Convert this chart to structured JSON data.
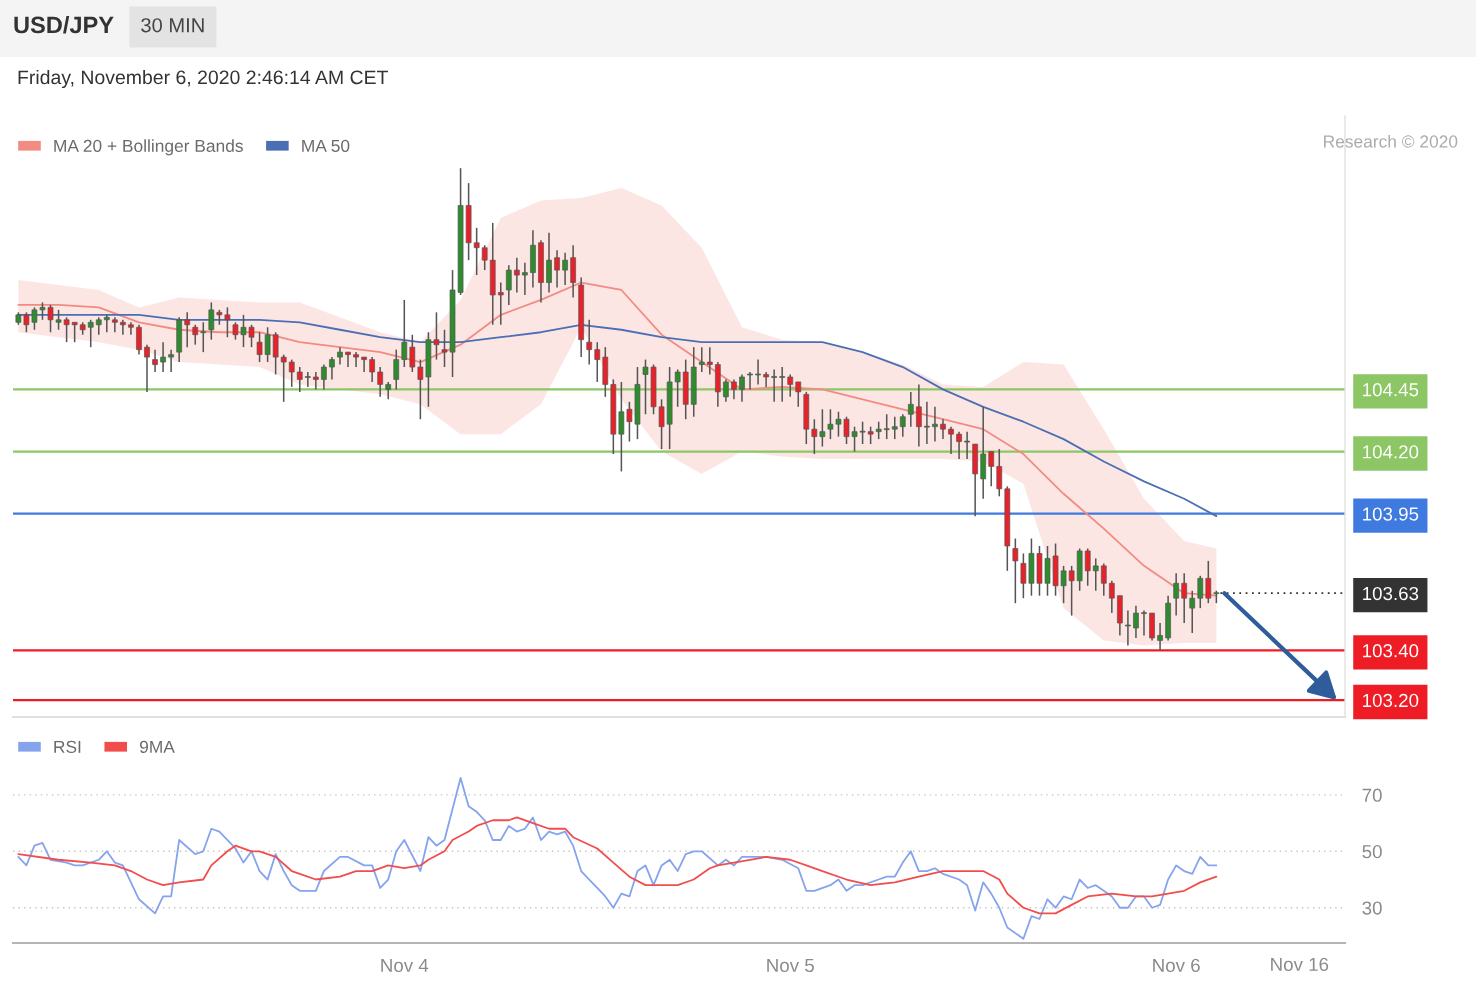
{
  "chart_data": [
    {
      "type": "candlestick",
      "title": "USD/JPY",
      "subtitle": "Friday, November 6, 2020 2:46:14 AM CET",
      "annotations": [
        "30 MIN",
        "Research © 2020"
      ],
      "x": [
        "2020-11-03T00:00",
        "2020-11-03T00:30",
        "2020-11-03T01:00",
        "2020-11-03T01:30",
        "2020-11-03T02:00",
        "2020-11-03T02:30",
        "2020-11-03T03:00",
        "2020-11-03T03:30",
        "2020-11-03T04:00",
        "2020-11-03T04:30",
        "2020-11-03T05:00",
        "2020-11-03T05:30",
        "2020-11-03T06:00",
        "2020-11-03T06:30",
        "2020-11-03T07:00",
        "2020-11-03T07:30",
        "2020-11-03T08:00",
        "2020-11-03T08:30",
        "2020-11-03T09:00",
        "2020-11-03T09:30",
        "2020-11-03T10:00",
        "2020-11-03T10:30",
        "2020-11-03T11:00",
        "2020-11-03T11:30",
        "2020-11-03T12:00",
        "2020-11-03T12:30",
        "2020-11-03T13:00",
        "2020-11-03T13:30",
        "2020-11-03T14:00",
        "2020-11-03T14:30",
        "2020-11-03T15:00",
        "2020-11-03T15:30",
        "2020-11-03T16:00",
        "2020-11-03T16:30",
        "2020-11-03T17:00",
        "2020-11-03T17:30",
        "2020-11-03T18:00",
        "2020-11-03T18:30",
        "2020-11-03T19:00",
        "2020-11-03T19:30",
        "2020-11-03T20:00",
        "2020-11-03T20:30",
        "2020-11-03T21:00",
        "2020-11-03T21:30",
        "2020-11-03T22:00",
        "2020-11-03T22:30",
        "2020-11-03T23:00",
        "2020-11-03T23:30",
        "2020-11-04T00:00",
        "2020-11-04T00:30",
        "2020-11-04T01:00",
        "2020-11-04T01:30",
        "2020-11-04T02:00",
        "2020-11-04T02:30",
        "2020-11-04T03:00",
        "2020-11-04T03:30",
        "2020-11-04T04:00",
        "2020-11-04T04:30",
        "2020-11-04T05:00",
        "2020-11-04T05:30",
        "2020-11-04T06:00",
        "2020-11-04T06:30",
        "2020-11-04T07:00",
        "2020-11-04T07:30",
        "2020-11-04T08:00",
        "2020-11-04T08:30",
        "2020-11-04T09:00",
        "2020-11-04T09:30",
        "2020-11-04T10:00",
        "2020-11-04T10:30",
        "2020-11-04T11:00",
        "2020-11-04T11:30",
        "2020-11-04T12:00",
        "2020-11-04T12:30",
        "2020-11-04T13:00",
        "2020-11-04T13:30",
        "2020-11-04T14:00",
        "2020-11-04T14:30",
        "2020-11-04T15:00",
        "2020-11-04T15:30",
        "2020-11-04T16:00",
        "2020-11-04T16:30",
        "2020-11-04T17:00",
        "2020-11-04T17:30",
        "2020-11-04T18:00",
        "2020-11-04T18:30",
        "2020-11-04T19:00",
        "2020-11-04T19:30",
        "2020-11-04T20:00",
        "2020-11-04T20:30",
        "2020-11-04T21:00",
        "2020-11-04T21:30",
        "2020-11-04T22:00",
        "2020-11-04T22:30",
        "2020-11-04T23:00",
        "2020-11-04T23:30",
        "2020-11-05T00:00",
        "2020-11-05T00:30",
        "2020-11-05T01:00",
        "2020-11-05T01:30",
        "2020-11-05T02:00",
        "2020-11-05T02:30",
        "2020-11-05T03:00",
        "2020-11-05T03:30",
        "2020-11-05T04:00",
        "2020-11-05T04:30",
        "2020-11-05T05:00",
        "2020-11-05T05:30",
        "2020-11-05T06:00",
        "2020-11-05T06:30",
        "2020-11-05T07:00",
        "2020-11-05T07:30",
        "2020-11-05T08:00",
        "2020-11-05T08:30",
        "2020-11-05T09:00",
        "2020-11-05T09:30",
        "2020-11-05T10:00",
        "2020-11-05T10:30",
        "2020-11-05T11:00",
        "2020-11-05T11:30",
        "2020-11-05T12:00",
        "2020-11-05T12:30",
        "2020-11-05T13:00",
        "2020-11-05T13:30",
        "2020-11-05T14:00",
        "2020-11-05T14:30",
        "2020-11-05T15:00",
        "2020-11-05T15:30",
        "2020-11-05T16:00",
        "2020-11-05T16:30",
        "2020-11-05T17:00",
        "2020-11-05T17:30",
        "2020-11-05T18:00",
        "2020-11-05T18:30",
        "2020-11-05T19:00",
        "2020-11-05T19:30",
        "2020-11-05T20:00",
        "2020-11-05T20:30",
        "2020-11-05T21:00",
        "2020-11-05T21:30",
        "2020-11-05T22:00",
        "2020-11-05T22:30",
        "2020-11-05T23:00",
        "2020-11-05T23:30",
        "2020-11-06T00:00",
        "2020-11-06T00:30",
        "2020-11-06T01:00",
        "2020-11-06T01:30",
        "2020-11-06T02:00",
        "2020-11-06T02:30"
      ],
      "ohlc": [
        [
          104.72,
          104.76,
          104.71,
          104.75
        ],
        [
          104.75,
          104.76,
          104.68,
          104.71
        ],
        [
          104.72,
          104.78,
          104.69,
          104.77
        ],
        [
          104.77,
          104.8,
          104.73,
          104.78
        ],
        [
          104.78,
          104.79,
          104.68,
          104.73
        ],
        [
          104.72,
          104.77,
          104.69,
          104.73
        ],
        [
          104.73,
          104.74,
          104.64,
          104.71
        ],
        [
          104.72,
          104.72,
          104.64,
          104.71
        ],
        [
          104.71,
          104.72,
          104.67,
          104.69
        ],
        [
          104.7,
          104.73,
          104.62,
          104.72
        ],
        [
          104.71,
          104.74,
          104.67,
          104.73
        ],
        [
          104.73,
          104.75,
          104.68,
          104.74
        ],
        [
          104.73,
          104.74,
          104.68,
          104.72
        ],
        [
          104.72,
          104.73,
          104.67,
          104.71
        ],
        [
          104.71,
          104.72,
          104.67,
          104.7
        ],
        [
          104.7,
          104.71,
          104.59,
          104.61
        ],
        [
          104.62,
          104.63,
          104.44,
          104.58
        ],
        [
          104.57,
          104.61,
          104.52,
          104.55
        ],
        [
          104.56,
          104.64,
          104.52,
          104.58
        ],
        [
          104.58,
          104.61,
          104.52,
          104.59
        ],
        [
          104.6,
          104.74,
          104.56,
          104.73
        ],
        [
          104.73,
          104.76,
          104.62,
          104.71
        ],
        [
          104.7,
          104.71,
          104.63,
          104.67
        ],
        [
          104.68,
          104.72,
          104.6,
          104.68
        ],
        [
          104.69,
          104.8,
          104.65,
          104.77
        ],
        [
          104.76,
          104.77,
          104.71,
          104.75
        ],
        [
          104.75,
          104.78,
          104.66,
          104.73
        ],
        [
          104.71,
          104.72,
          104.65,
          104.67
        ],
        [
          104.67,
          104.75,
          104.62,
          104.7
        ],
        [
          104.7,
          104.71,
          104.62,
          104.66
        ],
        [
          104.64,
          104.68,
          104.56,
          104.59
        ],
        [
          104.59,
          104.7,
          104.56,
          104.67
        ],
        [
          104.67,
          104.68,
          104.51,
          104.58
        ],
        [
          104.58,
          104.59,
          104.4,
          104.56
        ],
        [
          104.56,
          104.57,
          104.46,
          104.52
        ],
        [
          104.52,
          104.54,
          104.44,
          104.49
        ],
        [
          104.5,
          104.52,
          104.46,
          104.5
        ],
        [
          104.5,
          104.52,
          104.45,
          104.49
        ],
        [
          104.49,
          104.55,
          104.45,
          104.54
        ],
        [
          104.54,
          104.58,
          104.49,
          104.57
        ],
        [
          104.58,
          104.62,
          104.55,
          104.6
        ],
        [
          104.6,
          104.6,
          104.54,
          104.59
        ],
        [
          104.59,
          104.6,
          104.54,
          104.58
        ],
        [
          104.58,
          104.58,
          104.52,
          104.57
        ],
        [
          104.57,
          104.58,
          104.48,
          104.52
        ],
        [
          104.52,
          104.54,
          104.42,
          104.47
        ],
        [
          104.45,
          104.48,
          104.41,
          104.47
        ],
        [
          104.49,
          104.61,
          104.45,
          104.57
        ],
        [
          104.57,
          104.81,
          104.54,
          104.64
        ],
        [
          104.62,
          104.67,
          104.52,
          104.54
        ],
        [
          104.54,
          104.57,
          104.33,
          104.49
        ],
        [
          104.5,
          104.68,
          104.38,
          104.65
        ],
        [
          104.65,
          104.76,
          104.57,
          104.63
        ],
        [
          104.61,
          104.69,
          104.54,
          104.6
        ],
        [
          104.6,
          104.93,
          104.5,
          104.85
        ],
        [
          104.84,
          105.34,
          104.83,
          105.19
        ],
        [
          105.19,
          105.28,
          104.97,
          105.04
        ],
        [
          105.04,
          105.1,
          104.91,
          105.02
        ],
        [
          105.02,
          105.03,
          104.93,
          104.97
        ],
        [
          104.97,
          105.12,
          104.71,
          104.83
        ],
        [
          104.84,
          104.88,
          104.71,
          104.83
        ],
        [
          104.85,
          104.95,
          104.79,
          104.93
        ],
        [
          104.93,
          104.98,
          104.84,
          104.91
        ],
        [
          104.91,
          104.96,
          104.83,
          104.92
        ],
        [
          104.92,
          105.09,
          104.86,
          105.03
        ],
        [
          105.04,
          105.05,
          104.8,
          104.88
        ],
        [
          104.88,
          105.08,
          104.84,
          104.97
        ],
        [
          104.98,
          105.01,
          104.86,
          104.93
        ],
        [
          104.93,
          105.0,
          104.87,
          104.97
        ],
        [
          104.98,
          105.03,
          104.82,
          104.88
        ],
        [
          104.87,
          104.9,
          104.58,
          104.65
        ],
        [
          104.64,
          104.73,
          104.55,
          104.61
        ],
        [
          104.61,
          104.64,
          104.48,
          104.57
        ],
        [
          104.58,
          104.62,
          104.42,
          104.47
        ],
        [
          104.47,
          104.49,
          104.19,
          104.27
        ],
        [
          104.27,
          104.48,
          104.12,
          104.36
        ],
        [
          104.37,
          104.4,
          104.24,
          104.32
        ],
        [
          104.31,
          104.54,
          104.25,
          104.47
        ],
        [
          104.51,
          104.57,
          104.35,
          104.54
        ],
        [
          104.54,
          104.55,
          104.35,
          104.38
        ],
        [
          104.38,
          104.41,
          104.21,
          104.3
        ],
        [
          104.31,
          104.54,
          104.21,
          104.48
        ],
        [
          104.48,
          104.53,
          104.38,
          104.52
        ],
        [
          104.52,
          104.57,
          104.33,
          104.39
        ],
        [
          104.39,
          104.62,
          104.34,
          104.54
        ],
        [
          104.55,
          104.62,
          104.52,
          104.56
        ],
        [
          104.56,
          104.62,
          104.51,
          104.55
        ],
        [
          104.55,
          104.56,
          104.38,
          104.44
        ],
        [
          104.42,
          104.49,
          104.4,
          104.48
        ],
        [
          104.48,
          104.49,
          104.41,
          104.45
        ],
        [
          104.45,
          104.51,
          104.4,
          104.5
        ],
        [
          104.51,
          104.52,
          104.45,
          104.51
        ],
        [
          104.51,
          104.57,
          104.47,
          104.51
        ],
        [
          104.51,
          104.52,
          104.46,
          104.5
        ],
        [
          104.5,
          104.53,
          104.4,
          104.5
        ],
        [
          104.5,
          104.54,
          104.4,
          104.5
        ],
        [
          104.5,
          104.51,
          104.42,
          104.47
        ],
        [
          104.48,
          104.48,
          104.38,
          104.44
        ],
        [
          104.43,
          104.44,
          104.23,
          104.29
        ],
        [
          104.29,
          104.33,
          104.19,
          104.26
        ],
        [
          104.26,
          104.37,
          104.22,
          104.28
        ],
        [
          104.29,
          104.37,
          104.25,
          104.31
        ],
        [
          104.31,
          104.36,
          104.26,
          104.33
        ],
        [
          104.33,
          104.34,
          104.23,
          104.26
        ],
        [
          104.26,
          104.3,
          104.2,
          104.28
        ],
        [
          104.28,
          104.32,
          104.23,
          104.28
        ],
        [
          104.28,
          104.3,
          104.23,
          104.27
        ],
        [
          104.28,
          104.32,
          104.25,
          104.29
        ],
        [
          104.29,
          104.35,
          104.25,
          104.29
        ],
        [
          104.29,
          104.34,
          104.25,
          104.3
        ],
        [
          104.3,
          104.35,
          104.26,
          104.34
        ],
        [
          104.35,
          104.44,
          104.3,
          104.39
        ],
        [
          104.38,
          104.47,
          104.22,
          104.3
        ],
        [
          104.3,
          104.4,
          104.23,
          104.3
        ],
        [
          104.3,
          104.38,
          104.24,
          104.31
        ],
        [
          104.31,
          104.33,
          104.25,
          104.29
        ],
        [
          104.29,
          104.3,
          104.19,
          104.27
        ],
        [
          104.27,
          104.28,
          104.17,
          104.24
        ],
        [
          104.24,
          104.28,
          104.17,
          104.24
        ],
        [
          104.23,
          104.23,
          103.94,
          104.11
        ],
        [
          104.09,
          104.38,
          104.01,
          104.19
        ],
        [
          104.2,
          104.2,
          104.06,
          104.14
        ],
        [
          104.14,
          104.21,
          104.02,
          104.05
        ],
        [
          104.05,
          104.06,
          103.72,
          103.82
        ],
        [
          103.81,
          103.85,
          103.59,
          103.76
        ],
        [
          103.75,
          103.79,
          103.61,
          103.67
        ],
        [
          103.67,
          103.85,
          103.62,
          103.79
        ],
        [
          103.79,
          103.82,
          103.62,
          103.67
        ],
        [
          103.67,
          103.82,
          103.62,
          103.77
        ],
        [
          103.78,
          103.83,
          103.62,
          103.66
        ],
        [
          103.66,
          103.74,
          103.59,
          103.72
        ],
        [
          103.72,
          103.74,
          103.54,
          103.68
        ],
        [
          103.68,
          103.81,
          103.64,
          103.8
        ],
        [
          103.8,
          103.81,
          103.66,
          103.72
        ],
        [
          103.72,
          103.77,
          103.64,
          103.74
        ],
        [
          103.74,
          103.75,
          103.62,
          103.67
        ],
        [
          103.67,
          103.68,
          103.55,
          103.61
        ],
        [
          103.62,
          103.62,
          103.46,
          103.51
        ],
        [
          103.5,
          103.56,
          103.42,
          103.5
        ],
        [
          103.49,
          103.58,
          103.45,
          103.55
        ],
        [
          103.55,
          103.56,
          103.46,
          103.55
        ],
        [
          103.55,
          103.55,
          103.44,
          103.45
        ],
        [
          103.44,
          103.51,
          103.4,
          103.46
        ],
        [
          103.45,
          103.62,
          103.44,
          103.59
        ],
        [
          103.61,
          103.71,
          103.54,
          103.67
        ],
        [
          103.67,
          103.71,
          103.51,
          103.61
        ],
        [
          103.57,
          103.64,
          103.47,
          103.61
        ],
        [
          103.61,
          103.7,
          103.57,
          103.69
        ],
        [
          103.69,
          103.76,
          103.59,
          103.61
        ],
        [
          103.63,
          103.64,
          103.59,
          103.63
        ]
      ],
      "series": [
        {
          "name": "MA 20 + Bollinger Bands",
          "type": "line",
          "color": "#f28b82",
          "x": [
            "2020-11-03T00:00",
            "2020-11-03T02:30",
            "2020-11-03T05:00",
            "2020-11-03T07:30",
            "2020-11-03T10:00",
            "2020-11-03T12:30",
            "2020-11-03T15:00",
            "2020-11-03T17:30",
            "2020-11-03T20:00",
            "2020-11-03T22:30",
            "2020-11-04T01:00",
            "2020-11-04T03:30",
            "2020-11-04T06:00",
            "2020-11-04T08:30",
            "2020-11-04T11:00",
            "2020-11-04T13:30",
            "2020-11-04T16:00",
            "2020-11-04T18:30",
            "2020-11-04T21:00",
            "2020-11-04T23:30",
            "2020-11-05T02:00",
            "2020-11-05T04:30",
            "2020-11-05T07:00",
            "2020-11-05T09:30",
            "2020-11-05T12:00",
            "2020-11-05T14:30",
            "2020-11-05T17:00",
            "2020-11-05T19:30",
            "2020-11-05T22:00",
            "2020-11-06T00:30",
            "2020-11-06T02:30"
          ],
          "values": [
            104.79,
            104.79,
            104.78,
            104.72,
            104.69,
            104.68,
            104.68,
            104.64,
            104.62,
            104.6,
            104.56,
            104.63,
            104.75,
            104.81,
            104.88,
            104.85,
            104.67,
            104.56,
            104.45,
            104.46,
            104.45,
            104.41,
            104.37,
            104.33,
            104.29,
            104.19,
            104.03,
            103.89,
            103.74,
            103.63,
            103.62
          ],
          "upper": [
            104.89,
            104.87,
            104.85,
            104.78,
            104.82,
            104.81,
            104.8,
            104.8,
            104.74,
            104.68,
            104.64,
            104.81,
            105.14,
            105.21,
            105.22,
            105.26,
            105.19,
            105.02,
            104.7,
            104.65,
            104.64,
            104.6,
            104.55,
            104.47,
            104.46,
            104.56,
            104.55,
            104.29,
            104.01,
            103.84,
            103.81
          ],
          "lower": [
            104.68,
            104.66,
            104.64,
            104.61,
            104.56,
            104.55,
            104.54,
            104.47,
            104.45,
            104.43,
            104.39,
            104.27,
            104.27,
            104.39,
            104.7,
            104.41,
            104.2,
            104.11,
            104.2,
            104.18,
            104.17,
            104.17,
            104.17,
            104.17,
            104.16,
            104.07,
            103.57,
            103.44,
            103.42,
            103.43,
            103.43
          ]
        },
        {
          "name": "MA 50",
          "type": "line",
          "color": "#4a6fb5",
          "x": [
            "2020-11-03T00:00",
            "2020-11-03T02:30",
            "2020-11-03T05:00",
            "2020-11-03T07:30",
            "2020-11-03T10:00",
            "2020-11-03T12:30",
            "2020-11-03T15:00",
            "2020-11-03T17:30",
            "2020-11-03T20:00",
            "2020-11-03T22:30",
            "2020-11-04T01:00",
            "2020-11-04T03:30",
            "2020-11-04T06:00",
            "2020-11-04T08:30",
            "2020-11-04T11:00",
            "2020-11-04T13:30",
            "2020-11-04T16:00",
            "2020-11-04T18:30",
            "2020-11-04T21:00",
            "2020-11-04T23:30",
            "2020-11-05T02:00",
            "2020-11-05T04:30",
            "2020-11-05T07:00",
            "2020-11-05T09:30",
            "2020-11-05T12:00",
            "2020-11-05T14:30",
            "2020-11-05T17:00",
            "2020-11-05T19:30",
            "2020-11-05T22:00",
            "2020-11-06T00:30",
            "2020-11-06T02:30"
          ],
          "values": [
            104.75,
            104.75,
            104.75,
            104.75,
            104.73,
            104.73,
            104.73,
            104.72,
            104.69,
            104.66,
            104.64,
            104.64,
            104.66,
            104.68,
            104.71,
            104.69,
            104.66,
            104.64,
            104.64,
            104.64,
            104.64,
            104.6,
            104.54,
            104.45,
            104.38,
            104.32,
            104.25,
            104.16,
            104.08,
            104.01,
            103.94
          ]
        }
      ],
      "legend": "top left",
      "ref_lines": [
        {
          "axis": "y",
          "value": 104.45,
          "color": "#8cc665"
        },
        {
          "axis": "y",
          "value": 104.2,
          "color": "#8cc665"
        },
        {
          "axis": "y",
          "value": 103.95,
          "color": "#3f7ae0"
        },
        {
          "axis": "y",
          "value": 103.63,
          "color": "#333333",
          "line_style": "dotted"
        },
        {
          "axis": "y",
          "value": 103.4,
          "color": "#ee1c25"
        },
        {
          "axis": "y",
          "value": 103.2,
          "color": "#ee1c25"
        }
      ],
      "xlim": [
        "2020-11-02T23:40",
        "2020-11-06T10:30"
      ],
      "ylim": [
        103.14,
        105.55
      ],
      "yticks": [
        {
          "value": 103.2,
          "label": "103.20"
        },
        {
          "value": 103.4,
          "label": "103.40"
        },
        {
          "value": 103.63,
          "label": "103.63"
        },
        {
          "value": 103.95,
          "label": "103.95"
        },
        {
          "value": 104.2,
          "label": "104.20"
        },
        {
          "value": 104.45,
          "label": "104.45"
        }
      ]
    },
    {
      "type": "line",
      "annotations": [
        "Nov 16"
      ],
      "series": [
        {
          "name": "RSI",
          "color": "#86a3ee",
          "x": [
            "2020-11-03T00:00",
            "2020-11-03T00:30",
            "2020-11-03T01:00",
            "2020-11-03T01:30",
            "2020-11-03T02:00",
            "2020-11-03T03:00",
            "2020-11-03T03:30",
            "2020-11-03T04:00",
            "2020-11-03T05:00",
            "2020-11-03T05:30",
            "2020-11-03T06:00",
            "2020-11-03T06:30",
            "2020-11-03T07:30",
            "2020-11-03T08:30",
            "2020-11-03T09:00",
            "2020-11-03T09:30",
            "2020-11-03T10:00",
            "2020-11-03T11:00",
            "2020-11-03T11:30",
            "2020-11-03T12:00",
            "2020-11-03T12:30",
            "2020-11-03T13:30",
            "2020-11-03T14:00",
            "2020-11-03T14:30",
            "2020-11-03T15:00",
            "2020-11-03T15:30",
            "2020-11-03T16:00",
            "2020-11-03T16:30",
            "2020-11-03T17:00",
            "2020-11-03T17:30",
            "2020-11-03T18:00",
            "2020-11-03T18:30",
            "2020-11-03T19:00",
            "2020-11-03T20:00",
            "2020-11-03T20:30",
            "2020-11-03T21:30",
            "2020-11-03T22:00",
            "2020-11-03T22:30",
            "2020-11-03T23:00",
            "2020-11-03T23:30",
            "2020-11-04T00:00",
            "2020-11-04T01:00",
            "2020-11-04T01:30",
            "2020-11-04T02:00",
            "2020-11-04T02:30",
            "2020-11-04T03:00",
            "2020-11-04T03:30",
            "2020-11-04T04:00",
            "2020-11-04T04:30",
            "2020-11-04T05:00",
            "2020-11-04T05:30",
            "2020-11-04T06:00",
            "2020-11-04T06:30",
            "2020-11-04T07:00",
            "2020-11-04T07:30",
            "2020-11-04T08:00",
            "2020-11-04T08:30",
            "2020-11-04T09:00",
            "2020-11-04T09:30",
            "2020-11-04T10:00",
            "2020-11-04T10:30",
            "2020-11-04T11:00",
            "2020-11-04T11:30",
            "2020-11-04T12:00",
            "2020-11-04T12:30",
            "2020-11-04T13:00",
            "2020-11-04T13:30",
            "2020-11-04T14:00",
            "2020-11-04T14:30",
            "2020-11-04T15:00",
            "2020-11-04T15:30",
            "2020-11-04T16:00",
            "2020-11-04T16:30",
            "2020-11-04T17:00",
            "2020-11-04T17:30",
            "2020-11-04T18:00",
            "2020-11-04T18:30",
            "2020-11-04T19:30",
            "2020-11-04T20:00",
            "2020-11-04T20:30",
            "2020-11-04T21:00",
            "2020-11-04T21:30",
            "2020-11-04T22:30",
            "2020-11-04T23:30",
            "2020-11-05T00:30",
            "2020-11-05T01:00",
            "2020-11-05T01:30",
            "2020-11-05T02:30",
            "2020-11-05T03:00",
            "2020-11-05T03:30",
            "2020-11-05T04:00",
            "2020-11-05T04:30",
            "2020-11-05T05:30",
            "2020-11-05T06:00",
            "2020-11-05T06:30",
            "2020-11-05T07:00",
            "2020-11-05T07:30",
            "2020-11-05T08:00",
            "2020-11-05T08:30",
            "2020-11-05T09:00",
            "2020-11-05T09:30",
            "2020-11-05T10:30",
            "2020-11-05T11:00",
            "2020-11-05T11:30",
            "2020-11-05T12:00",
            "2020-11-05T12:30",
            "2020-11-05T13:00",
            "2020-11-05T13:30",
            "2020-11-05T14:00",
            "2020-11-05T14:30",
            "2020-11-05T15:00",
            "2020-11-05T15:30",
            "2020-11-05T16:00",
            "2020-11-05T16:30",
            "2020-11-05T17:00",
            "2020-11-05T17:30",
            "2020-11-05T18:00",
            "2020-11-05T18:30",
            "2020-11-05T19:00",
            "2020-11-05T19:30",
            "2020-11-05T20:00",
            "2020-11-05T20:30",
            "2020-11-05T21:00",
            "2020-11-05T21:30",
            "2020-11-05T22:00",
            "2020-11-05T22:30",
            "2020-11-05T23:00",
            "2020-11-05T23:30",
            "2020-11-06T00:00",
            "2020-11-06T00:30",
            "2020-11-06T01:00",
            "2020-11-06T01:30",
            "2020-11-06T02:00",
            "2020-11-06T02:30"
          ],
          "values": [
            48,
            45,
            52,
            53,
            47,
            46,
            45,
            45,
            47,
            50,
            46,
            45,
            33,
            28,
            34,
            34,
            54,
            49,
            50,
            58,
            57,
            51,
            46,
            50,
            43,
            40,
            49,
            43,
            38,
            36,
            36,
            36,
            43,
            48,
            48,
            45,
            45,
            37,
            40,
            50,
            54,
            43,
            55,
            52,
            54,
            65,
            76,
            66,
            64,
            61,
            54,
            54,
            59,
            57,
            58,
            62,
            54,
            57,
            56,
            57,
            52,
            43,
            40,
            37,
            34,
            30,
            35,
            34,
            43,
            45,
            38,
            45,
            47,
            43,
            49,
            50,
            50,
            45,
            47,
            45,
            48,
            48,
            48,
            47,
            44,
            36,
            36,
            38,
            40,
            36,
            38,
            38,
            40,
            41,
            41,
            46,
            50,
            43,
            43,
            44,
            42,
            40,
            38,
            29,
            39,
            35,
            30,
            23,
            21,
            19,
            27,
            26,
            33,
            30,
            34,
            33,
            40,
            37,
            38,
            36,
            34,
            30,
            30,
            34,
            34,
            30,
            31,
            40,
            45,
            43,
            42,
            48,
            45,
            45
          ]
        },
        {
          "name": "9MA",
          "color": "#f24d4d",
          "x": [
            "2020-11-03T00:00",
            "2020-11-03T02:30",
            "2020-11-03T04:30",
            "2020-11-03T06:00",
            "2020-11-03T07:00",
            "2020-11-03T08:00",
            "2020-11-03T09:00",
            "2020-11-03T10:00",
            "2020-11-03T11:30",
            "2020-11-03T12:00",
            "2020-11-03T13:00",
            "2020-11-03T13:30",
            "2020-11-03T14:30",
            "2020-11-03T15:00",
            "2020-11-03T16:00",
            "2020-11-03T17:00",
            "2020-11-03T17:30",
            "2020-11-03T18:30",
            "2020-11-03T20:00",
            "2020-11-03T21:00",
            "2020-11-03T22:00",
            "2020-11-03T23:00",
            "2020-11-04T00:00",
            "2020-11-04T01:00",
            "2020-11-04T01:30",
            "2020-11-04T02:30",
            "2020-11-04T03:00",
            "2020-11-04T04:00",
            "2020-11-04T04:30",
            "2020-11-04T05:30",
            "2020-11-04T06:30",
            "2020-11-04T07:00",
            "2020-11-04T08:00",
            "2020-11-04T09:00",
            "2020-11-04T10:00",
            "2020-11-04T10:30",
            "2020-11-04T12:00",
            "2020-11-04T13:00",
            "2020-11-04T14:00",
            "2020-11-04T15:00",
            "2020-11-04T16:00",
            "2020-11-04T17:00",
            "2020-11-04T18:00",
            "2020-11-04T19:00",
            "2020-11-04T19:30",
            "2020-11-04T20:30",
            "2020-11-04T21:30",
            "2020-11-04T22:30",
            "2020-11-05T00:00",
            "2020-11-05T01:00",
            "2020-11-05T02:00",
            "2020-11-05T03:30",
            "2020-11-05T05:00",
            "2020-11-05T06:30",
            "2020-11-05T08:00",
            "2020-11-05T09:30",
            "2020-11-05T11:00",
            "2020-11-05T12:00",
            "2020-11-05T13:00",
            "2020-11-05T13:30",
            "2020-11-05T14:30",
            "2020-11-05T15:30",
            "2020-11-05T16:30",
            "2020-11-05T17:30",
            "2020-11-05T18:30",
            "2020-11-05T20:00",
            "2020-11-05T21:30",
            "2020-11-05T22:30",
            "2020-11-05T23:30",
            "2020-11-06T00:30",
            "2020-11-06T01:30",
            "2020-11-06T02:30"
          ],
          "values": [
            49,
            47,
            46,
            45,
            43,
            40,
            38,
            39,
            40,
            45,
            50,
            52,
            50,
            50,
            48,
            43,
            42,
            40,
            41,
            43,
            43,
            45,
            44,
            45,
            47,
            50,
            54,
            57,
            59,
            61,
            61,
            62,
            60,
            58,
            58,
            55,
            51,
            46,
            41,
            38,
            38,
            38,
            40,
            44,
            45,
            46,
            47,
            48,
            47,
            45,
            43,
            40,
            38,
            39,
            41,
            43,
            43,
            43,
            40,
            35,
            30,
            28,
            28,
            31,
            34,
            35,
            34,
            34,
            35,
            36,
            39,
            41
          ]
        }
      ],
      "legend": "top left",
      "xlim": [
        "2020-11-02T23:40",
        "2020-11-06T10:30"
      ],
      "xticks": [
        {
          "value": "2020-11-04T00:00",
          "label": "Nov 4"
        },
        {
          "value": "2020-11-05T00:00",
          "label": "Nov 5"
        },
        {
          "value": "2020-11-06T00:00",
          "label": "Nov 6"
        }
      ],
      "ylim": [
        17.5,
        97.6
      ],
      "yticks": [
        30,
        50,
        70
      ],
      "grid": "y"
    }
  ]
}
